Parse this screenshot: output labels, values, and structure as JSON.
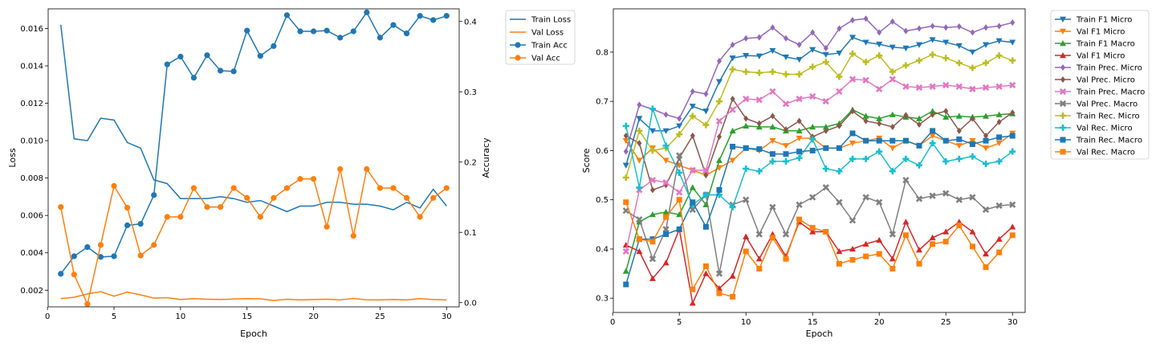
{
  "chart_data": [
    {
      "type": "line",
      "x": [
        1,
        2,
        3,
        4,
        5,
        6,
        7,
        8,
        9,
        10,
        11,
        12,
        13,
        14,
        15,
        16,
        17,
        18,
        19,
        20,
        21,
        22,
        23,
        24,
        25,
        26,
        27,
        28,
        29,
        30
      ],
      "xlabel": "Epoch",
      "ylabel_left": "Loss",
      "ylabel_right": "Accuracy",
      "xlim": [
        0.05,
        30.95
      ],
      "xticks": [
        0,
        5,
        10,
        15,
        20,
        25,
        30
      ],
      "ylim_left": [
        0.00111,
        0.01705
      ],
      "yticks_left": [
        "0.002",
        "0.004",
        "0.006",
        "0.008",
        "0.010",
        "0.012",
        "0.014",
        "0.016"
      ],
      "ylim_right": [
        -0.006,
        0.418
      ],
      "yticks_right": [
        "0.0",
        "0.1",
        "0.2",
        "0.3",
        "0.4"
      ],
      "legend_position": "outside-right",
      "series": [
        {
          "name": "Train Loss",
          "axis": "left",
          "color": "#1f77b4",
          "marker": "none",
          "values": [
            0.0162,
            0.0101,
            0.01,
            0.0112,
            0.0111,
            0.0099,
            0.0096,
            0.0079,
            0.0077,
            0.0069,
            0.0069,
            0.0069,
            0.007,
            0.0069,
            0.0067,
            0.0068,
            0.0065,
            0.0062,
            0.0065,
            0.0065,
            0.0067,
            0.0067,
            0.0066,
            0.0066,
            0.0065,
            0.0063,
            0.0067,
            0.0064,
            0.0074,
            0.0065
          ]
        },
        {
          "name": "Val Loss",
          "axis": "left",
          "color": "#ff7f0e",
          "marker": "none",
          "values": [
            0.00155,
            0.00162,
            0.0018,
            0.00192,
            0.00168,
            0.0019,
            0.00175,
            0.00158,
            0.0016,
            0.0015,
            0.00155,
            0.00152,
            0.0015,
            0.00153,
            0.00155,
            0.00154,
            0.00145,
            0.00152,
            0.00148,
            0.0015,
            0.00152,
            0.00148,
            0.00156,
            0.00149,
            0.00148,
            0.0015,
            0.00148,
            0.00155,
            0.0015,
            0.00148
          ]
        },
        {
          "name": "Train Acc",
          "axis": "right",
          "color": "#1f77b4",
          "marker": "circle",
          "values": [
            0.041,
            0.066,
            0.079,
            0.065,
            0.066,
            0.11,
            0.112,
            0.153,
            0.339,
            0.35,
            0.32,
            0.352,
            0.33,
            0.329,
            0.387,
            0.351,
            0.365,
            0.409,
            0.386,
            0.386,
            0.387,
            0.377,
            0.386,
            0.413,
            0.377,
            0.395,
            0.383,
            0.408,
            0.402,
            0.408
          ]
        },
        {
          "name": "Val Acc",
          "axis": "right",
          "color": "#ff7f0e",
          "marker": "circle",
          "values": [
            0.136,
            0.04,
            -0.002,
            0.082,
            0.166,
            0.135,
            0.067,
            0.082,
            0.122,
            0.122,
            0.163,
            0.136,
            0.136,
            0.163,
            0.149,
            0.122,
            0.149,
            0.163,
            0.176,
            0.176,
            0.108,
            0.19,
            0.095,
            0.19,
            0.163,
            0.163,
            0.149,
            0.122,
            0.149,
            0.163
          ]
        }
      ]
    },
    {
      "type": "line",
      "x": [
        1,
        2,
        3,
        4,
        5,
        6,
        7,
        8,
        9,
        10,
        11,
        12,
        13,
        14,
        15,
        16,
        17,
        18,
        19,
        20,
        21,
        22,
        23,
        24,
        25,
        26,
        27,
        28,
        29,
        30
      ],
      "xlabel": "Epoch",
      "ylabel": "Score",
      "xlim": [
        0.05,
        30.95
      ],
      "xticks": [
        0,
        5,
        10,
        15,
        20,
        25,
        30
      ],
      "ylim": [
        0.271,
        0.888
      ],
      "yticks": [
        "0.3",
        "0.4",
        "0.5",
        "0.6",
        "0.7",
        "0.8"
      ],
      "legend_position": "outside-right",
      "series": [
        {
          "name": "Train F1 Micro",
          "color": "#1f77b4",
          "marker": "triangle-down",
          "values": [
            0.57,
            0.665,
            0.64,
            0.64,
            0.65,
            0.69,
            0.68,
            0.74,
            0.788,
            0.793,
            0.792,
            0.803,
            0.79,
            0.785,
            0.805,
            0.795,
            0.798,
            0.83,
            0.82,
            0.816,
            0.81,
            0.808,
            0.815,
            0.825,
            0.82,
            0.813,
            0.8,
            0.815,
            0.823,
            0.82
          ]
        },
        {
          "name": "Val F1 Micro",
          "color": "#ff7f0e",
          "marker": "triangle-down",
          "values": [
            0.62,
            0.58,
            0.605,
            0.58,
            0.57,
            0.56,
            0.55,
            0.565,
            0.58,
            0.605,
            0.6,
            0.62,
            0.61,
            0.625,
            0.625,
            0.605,
            0.605,
            0.615,
            0.62,
            0.625,
            0.605,
            0.62,
            0.61,
            0.63,
            0.62,
            0.61,
            0.62,
            0.605,
            0.615,
            0.635
          ]
        },
        {
          "name": "Train F1 Macro",
          "color": "#2ca02c",
          "marker": "triangle-up",
          "values": [
            0.355,
            0.455,
            0.47,
            0.475,
            0.47,
            0.525,
            0.49,
            0.58,
            0.64,
            0.65,
            0.648,
            0.648,
            0.64,
            0.64,
            0.648,
            0.648,
            0.655,
            0.683,
            0.67,
            0.665,
            0.673,
            0.668,
            0.665,
            0.68,
            0.668,
            0.67,
            0.668,
            0.67,
            0.673,
            0.675
          ]
        },
        {
          "name": "Val F1 Micro",
          "color": "#d62728",
          "marker": "triangle-up",
          "values": [
            0.408,
            0.395,
            0.34,
            0.372,
            0.44,
            0.29,
            0.35,
            0.32,
            0.345,
            0.425,
            0.38,
            0.43,
            0.385,
            0.455,
            0.435,
            0.435,
            0.395,
            0.4,
            0.41,
            0.418,
            0.38,
            0.455,
            0.398,
            0.423,
            0.435,
            0.455,
            0.435,
            0.39,
            0.42,
            0.445
          ]
        },
        {
          "name": "Train Prec. Micro",
          "color": "#9467bd",
          "marker": "diamond",
          "values": [
            0.598,
            0.693,
            0.684,
            0.673,
            0.665,
            0.72,
            0.715,
            0.782,
            0.815,
            0.828,
            0.83,
            0.85,
            0.828,
            0.815,
            0.84,
            0.808,
            0.848,
            0.865,
            0.868,
            0.84,
            0.862,
            0.843,
            0.848,
            0.853,
            0.85,
            0.852,
            0.84,
            0.85,
            0.853,
            0.86
          ]
        },
        {
          "name": "Val Prec. Micro",
          "color": "#8c564b",
          "marker": "diamond",
          "values": [
            0.63,
            0.615,
            0.52,
            0.53,
            0.585,
            0.63,
            0.55,
            0.628,
            0.705,
            0.665,
            0.655,
            0.67,
            0.643,
            0.66,
            0.628,
            0.64,
            0.65,
            0.68,
            0.66,
            0.655,
            0.648,
            0.672,
            0.653,
            0.673,
            0.68,
            0.64,
            0.665,
            0.63,
            0.658,
            0.677
          ]
        },
        {
          "name": "Train Prec. Macro",
          "color": "#e377c2",
          "marker": "x-thick",
          "values": [
            0.395,
            0.52,
            0.54,
            0.535,
            0.515,
            0.56,
            0.56,
            0.66,
            0.683,
            0.705,
            0.703,
            0.72,
            0.695,
            0.705,
            0.71,
            0.7,
            0.72,
            0.745,
            0.743,
            0.725,
            0.745,
            0.73,
            0.728,
            0.73,
            0.733,
            0.73,
            0.725,
            0.728,
            0.73,
            0.733
          ]
        },
        {
          "name": "Val Prec. Macro",
          "color": "#7f7f7f",
          "marker": "x-thick",
          "values": [
            0.478,
            0.46,
            0.38,
            0.44,
            0.59,
            0.48,
            0.51,
            0.35,
            0.49,
            0.5,
            0.43,
            0.485,
            0.43,
            0.49,
            0.505,
            0.525,
            0.495,
            0.458,
            0.505,
            0.495,
            0.43,
            0.54,
            0.502,
            0.508,
            0.513,
            0.5,
            0.505,
            0.48,
            0.488,
            0.49
          ]
        },
        {
          "name": "Train Rec. Micro",
          "color": "#bcbd22",
          "marker": "plus-thick",
          "values": [
            0.545,
            0.64,
            0.6,
            0.605,
            0.633,
            0.67,
            0.652,
            0.7,
            0.765,
            0.76,
            0.758,
            0.76,
            0.755,
            0.755,
            0.77,
            0.78,
            0.75,
            0.797,
            0.78,
            0.793,
            0.76,
            0.773,
            0.783,
            0.795,
            0.788,
            0.778,
            0.768,
            0.778,
            0.793,
            0.783
          ]
        },
        {
          "name": "Val Rec. Micro",
          "color": "#17becf",
          "marker": "plus-thick",
          "values": [
            0.65,
            0.525,
            0.685,
            0.61,
            0.555,
            0.49,
            0.51,
            0.51,
            0.485,
            0.563,
            0.558,
            0.578,
            0.578,
            0.585,
            0.623,
            0.563,
            0.558,
            0.583,
            0.583,
            0.598,
            0.558,
            0.583,
            0.57,
            0.615,
            0.578,
            0.583,
            0.588,
            0.573,
            0.578,
            0.598
          ]
        },
        {
          "name": "Train Rec. Macro",
          "color": "#1f77b4",
          "marker": "square",
          "values": [
            0.328,
            0.42,
            0.42,
            0.43,
            0.44,
            0.495,
            0.445,
            0.52,
            0.608,
            0.605,
            0.603,
            0.593,
            0.593,
            0.598,
            0.6,
            0.605,
            0.605,
            0.635,
            0.62,
            0.62,
            0.62,
            0.62,
            0.61,
            0.64,
            0.62,
            0.623,
            0.613,
            0.62,
            0.627,
            0.63
          ]
        },
        {
          "name": "Val Rec. Macro",
          "color": "#ff7f0e",
          "marker": "square",
          "values": [
            0.495,
            0.42,
            0.415,
            0.465,
            0.5,
            0.318,
            0.365,
            0.31,
            0.303,
            0.395,
            0.36,
            0.423,
            0.38,
            0.46,
            0.443,
            0.435,
            0.37,
            0.378,
            0.385,
            0.39,
            0.36,
            0.428,
            0.37,
            0.41,
            0.415,
            0.448,
            0.405,
            0.363,
            0.393,
            0.428
          ]
        }
      ]
    }
  ]
}
